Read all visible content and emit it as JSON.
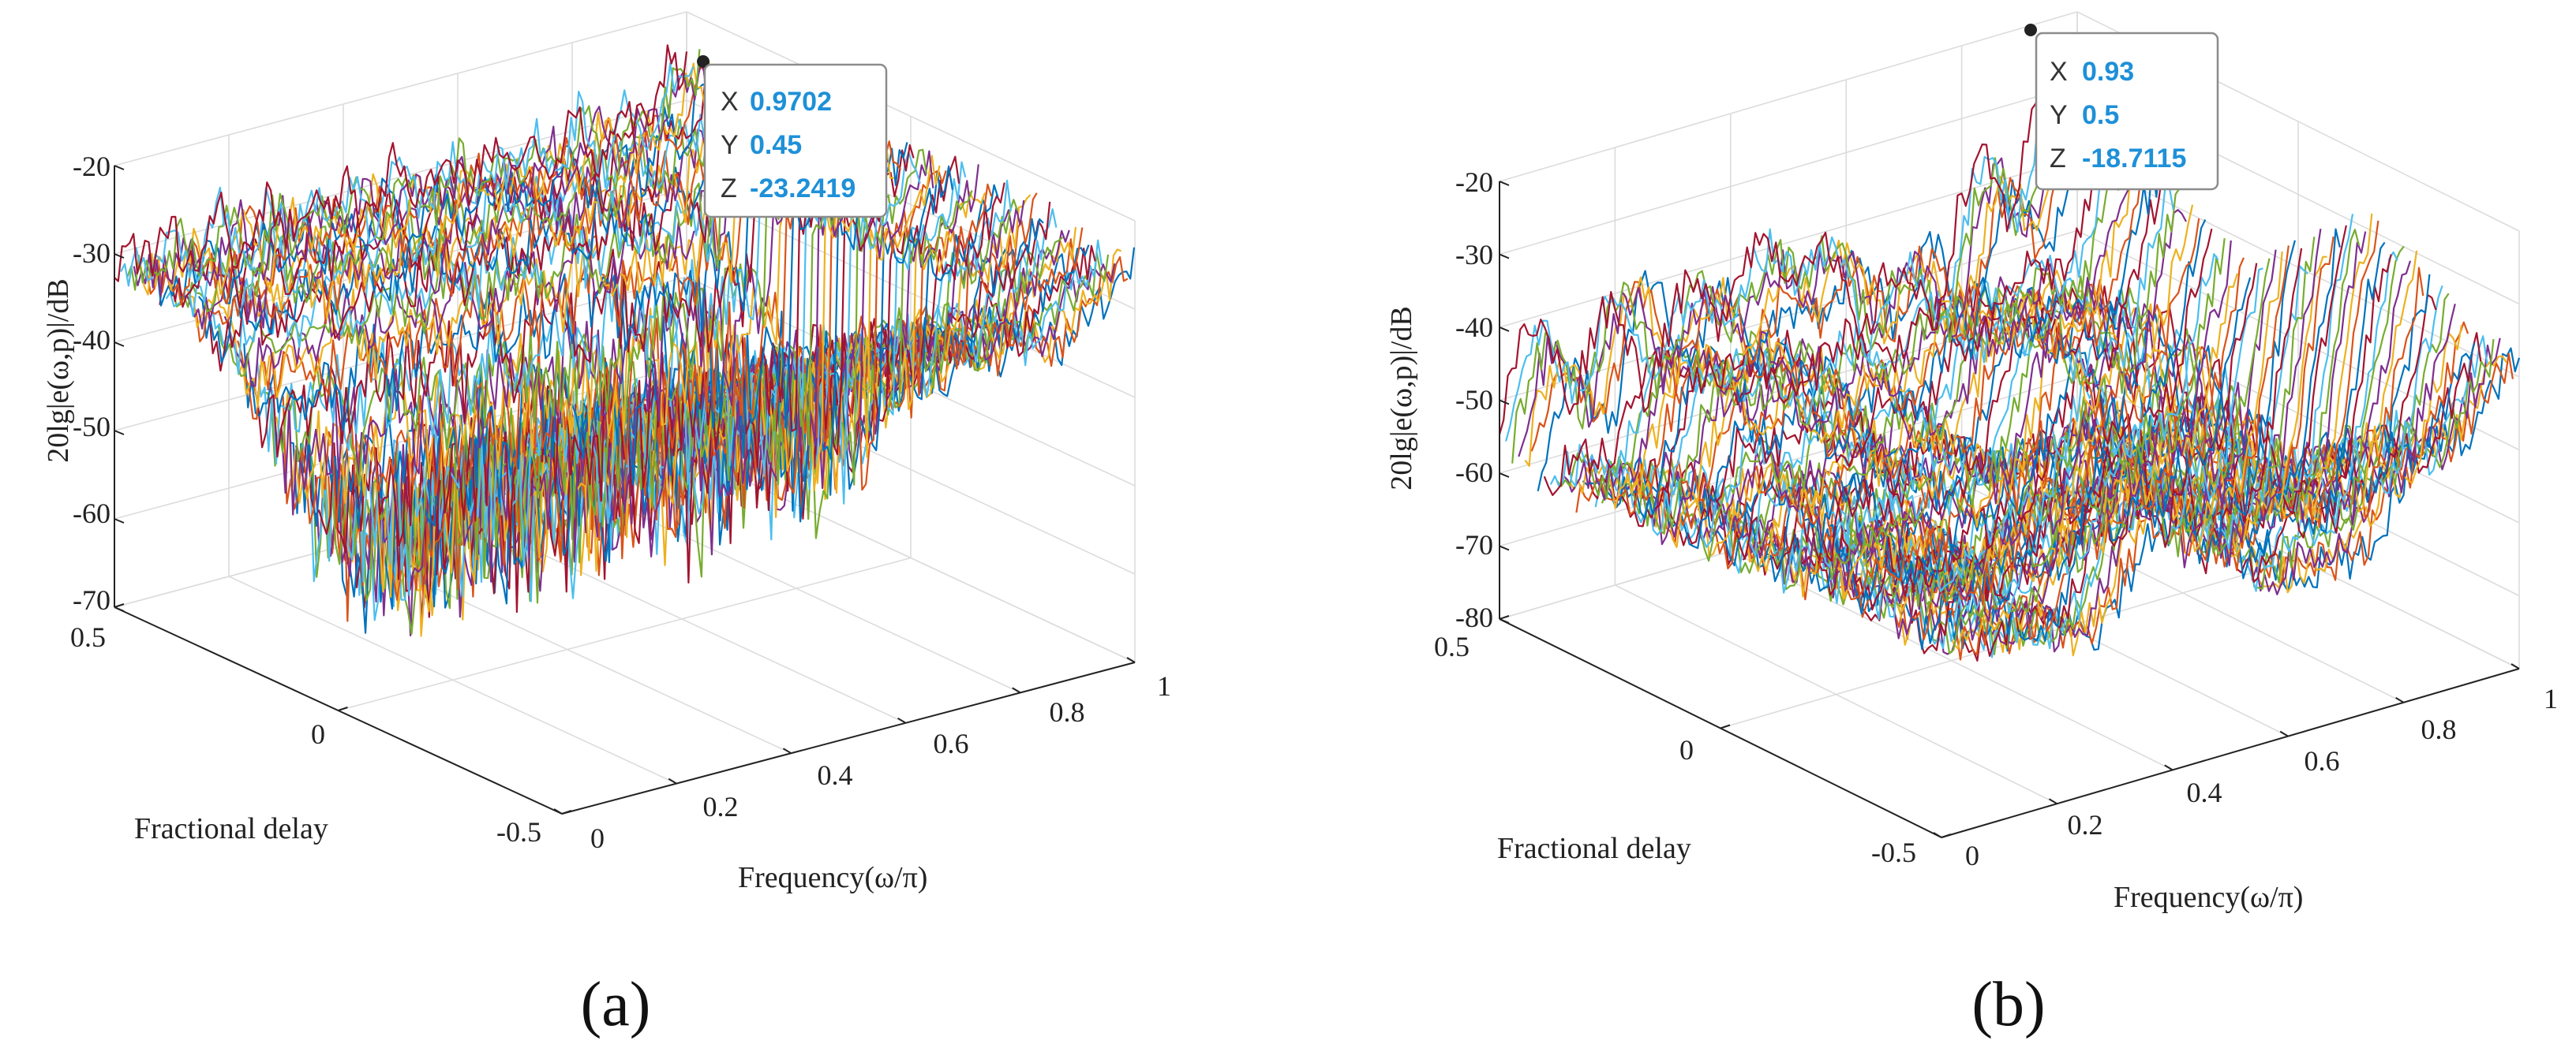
{
  "chart_data": [
    {
      "type": "surface-mesh",
      "panel_label": "(a)",
      "xlabel": "Frequency(ω/π)",
      "ylabel": "Fractional delay",
      "zlabel": "20lg|e(ω,p)|/dB",
      "xlim": [
        0,
        1
      ],
      "ylim": [
        -0.5,
        0.5
      ],
      "zlim": [
        -70,
        -20
      ],
      "x_ticks": [
        "0",
        "0.2",
        "0.4",
        "0.6",
        "0.8",
        "1"
      ],
      "y_ticks": [
        "-0.5",
        "0",
        "0.5"
      ],
      "z_ticks": [
        "-20",
        "-30",
        "-40",
        "-50",
        "-60",
        "-70"
      ],
      "datatip": {
        "x_key": "X",
        "x_value": "0.9702",
        "y_key": "Y",
        "y_value": "0.45",
        "z_key": "Z",
        "z_value": "-23.2419"
      },
      "style": "a"
    },
    {
      "type": "surface-mesh",
      "panel_label": "(b)",
      "xlabel": "Frequency(ω/π)",
      "ylabel": "Fractional delay",
      "zlabel": "20lg|e(ω,p)|/dB",
      "xlim": [
        0,
        1
      ],
      "ylim": [
        -0.5,
        0.5
      ],
      "zlim": [
        -80,
        -20
      ],
      "x_ticks": [
        "0",
        "0.2",
        "0.4",
        "0.6",
        "0.8",
        "1"
      ],
      "y_ticks": [
        "-0.5",
        "0",
        "0.5"
      ],
      "z_ticks": [
        "-20",
        "-30",
        "-40",
        "-50",
        "-60",
        "-70",
        "-80"
      ],
      "datatip": {
        "x_key": "X",
        "x_value": "0.93",
        "y_key": "Y",
        "y_value": "0.5",
        "z_key": "Z",
        "z_value": "-18.7115"
      },
      "style": "b"
    }
  ],
  "colors": {
    "series": [
      "#0072bd",
      "#d95319",
      "#edb120",
      "#7e2f8e",
      "#77ac30",
      "#4dbeee",
      "#a2142f"
    ],
    "datatip_value": "#1e90d8",
    "datatip_marker": "#222222"
  }
}
